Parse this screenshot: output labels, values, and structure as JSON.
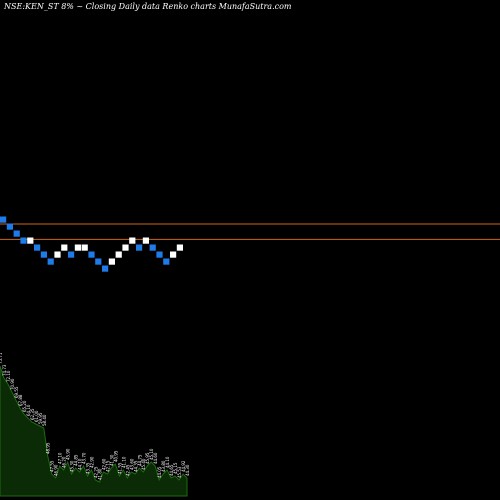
{
  "title": "NSE:KEN_ST 8% ~  Closing Daily data  Renko  charts MunafaSutra.com",
  "chart_data": {
    "type": "renko",
    "title": "NSE:KEN_ST 8% ~  Closing Daily data  Renko  charts MunafaSutra.com",
    "xlabel": "",
    "ylabel": "",
    "grid": false,
    "colors": {
      "background": "#000000",
      "up_brick": "#ffffff",
      "down_brick": "#1e7be8",
      "reference_line": "#c8691e",
      "volume_fill": "#0b2a06",
      "volume_edge": "#1d6b12",
      "volume_label": "#ffffff"
    },
    "reference_levels": [
      {
        "level": 1
      },
      {
        "level": 3.2
      }
    ],
    "bricks": [
      {
        "dir": "down",
        "level": 0
      },
      {
        "dir": "down",
        "level": 1
      },
      {
        "dir": "down",
        "level": 2
      },
      {
        "dir": "down",
        "level": 3
      },
      {
        "dir": "up",
        "level": 3
      },
      {
        "dir": "down",
        "level": 4
      },
      {
        "dir": "down",
        "level": 5
      },
      {
        "dir": "down",
        "level": 6
      },
      {
        "dir": "up",
        "level": 5
      },
      {
        "dir": "up",
        "level": 4
      },
      {
        "dir": "down",
        "level": 5
      },
      {
        "dir": "up",
        "level": 4
      },
      {
        "dir": "up",
        "level": 4
      },
      {
        "dir": "down",
        "level": 5
      },
      {
        "dir": "down",
        "level": 6
      },
      {
        "dir": "down",
        "level": 7
      },
      {
        "dir": "up",
        "level": 6
      },
      {
        "dir": "up",
        "level": 5
      },
      {
        "dir": "up",
        "level": 4
      },
      {
        "dir": "up",
        "level": 3
      },
      {
        "dir": "down",
        "level": 4
      },
      {
        "dir": "up",
        "level": 3
      },
      {
        "dir": "down",
        "level": 4
      },
      {
        "dir": "down",
        "level": 5
      },
      {
        "dir": "down",
        "level": 6
      },
      {
        "dir": "up",
        "level": 5
      },
      {
        "dir": "up",
        "level": 4
      }
    ],
    "volume": {
      "values": [
        130,
        118,
        112,
        104,
        96,
        88,
        82,
        78,
        74,
        72,
        70,
        68,
        40,
        22,
        18,
        30,
        26,
        34,
        22,
        28,
        24,
        30,
        20,
        26,
        16,
        14,
        24,
        22,
        28,
        32,
        20,
        26,
        18,
        24,
        22,
        28,
        24,
        30,
        34,
        30,
        16,
        22,
        26,
        18,
        20,
        16,
        22,
        18
      ],
      "labels": [
        "75.71",
        "74.73",
        "72.10",
        "70.90",
        "69.55",
        "67.88",
        "65.20",
        "64.10",
        "62.35",
        "61.00",
        "59.95",
        "58.40",
        "48.95",
        "47.55",
        "46.90",
        "47.10",
        "46.20",
        "45.90",
        "45.30",
        "44.85",
        "44.10",
        "43.70",
        "43.35",
        "42.90",
        "42.25",
        "41.80",
        "42.60",
        "42.15",
        "41.30",
        "40.95",
        "41.55",
        "41.10",
        "42.45",
        "43.60",
        "44.35",
        "44.75",
        "45.40",
        "45.95",
        "45.10",
        "44.60",
        "44.05",
        "43.80",
        "44.10",
        "44.65",
        "45.15",
        "45.53",
        "44.92",
        "44.30"
      ]
    }
  }
}
